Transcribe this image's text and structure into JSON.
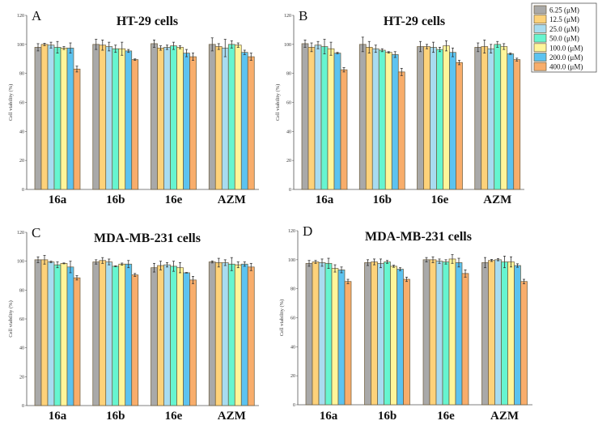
{
  "chart_data": {
    "type": "bar",
    "legend": {
      "placement": "top-right",
      "entries": [
        "6.25 (μM)",
        "12.5 (μM)",
        "25.0 (μM)",
        "50.0 (μM)",
        "100.0 (μM)",
        "200.0 (μM)",
        "400.0 (μM)"
      ],
      "colors": [
        "#a9a9a9",
        "#fdd27a",
        "#a8dcf0",
        "#66f5d0",
        "#fff59a",
        "#5cc3f0",
        "#f8ad6b"
      ]
    },
    "panels": [
      {
        "label": "A",
        "title": "HT-29 cells",
        "ylabel": "Cell viability (%)",
        "ylim": [
          0,
          120
        ],
        "yticks": [
          "0",
          "20",
          "40",
          "60",
          "80",
          "100",
          "120"
        ],
        "categories": [
          "16a",
          "16b",
          "16e",
          "AZM"
        ],
        "values": [
          [
            98,
            100,
            99.5,
            98,
            97.5,
            97.5,
            83
          ],
          [
            100,
            99.5,
            98.5,
            97,
            97,
            95.5,
            89.5
          ],
          [
            100.5,
            97.5,
            98,
            99,
            98,
            94,
            91.5
          ],
          [
            100,
            98.5,
            97.5,
            100,
            99.5,
            94.5,
            91.5
          ]
        ],
        "errors": [
          [
            2.5,
            0.8,
            2,
            4,
            1,
            3.5,
            2
          ],
          [
            3.5,
            3.5,
            3,
            2.5,
            4.5,
            1,
            0.5
          ],
          [
            2.5,
            1.5,
            1.5,
            2.5,
            1,
            2.5,
            2.5
          ],
          [
            4.5,
            2,
            6,
            2.5,
            1.5,
            1.5,
            2.5
          ]
        ]
      },
      {
        "label": "B",
        "title": "HT-29 cells",
        "ylabel": "Cell viability (%)",
        "ylim": [
          0,
          120
        ],
        "yticks": [
          "0",
          "20",
          "40",
          "60",
          "80",
          "100",
          "120"
        ],
        "categories": [
          "16a",
          "16b",
          "16e",
          "AZM"
        ],
        "values": [
          [
            100.5,
            98,
            99.5,
            98.5,
            97,
            94,
            82.5
          ],
          [
            100,
            98,
            97,
            96,
            94.5,
            93,
            81
          ],
          [
            98.5,
            98.5,
            98,
            96.5,
            99,
            94.5,
            87.5
          ],
          [
            98,
            98.5,
            97,
            100,
            98.5,
            93.5,
            89.5
          ]
        ],
        "errors": [
          [
            2.5,
            3,
            2.5,
            5,
            4.5,
            0.5,
            1.5
          ],
          [
            5,
            4,
            2.5,
            1,
            0.5,
            2,
            2.5
          ],
          [
            3.5,
            1.5,
            3.5,
            1.5,
            3.5,
            3,
            1.5
          ],
          [
            3,
            4.5,
            3,
            2,
            2,
            0.5,
            1
          ]
        ]
      },
      {
        "label": "C",
        "title": "MDA-MB-231 cells",
        "ylabel": "Cell viability (%)",
        "ylim": [
          0,
          120
        ],
        "yticks": [
          "0",
          "20",
          "40",
          "60",
          "80",
          "100",
          "120"
        ],
        "categories": [
          "16a",
          "16b",
          "16e",
          "AZM"
        ],
        "values": [
          [
            101,
            101,
            99.5,
            97.5,
            98.5,
            96,
            88.5
          ],
          [
            99.5,
            100.5,
            99.5,
            96.5,
            98,
            98,
            90.5
          ],
          [
            95.5,
            97,
            97.5,
            96.5,
            95.5,
            92,
            87
          ],
          [
            99.5,
            99,
            99,
            98,
            97.5,
            98,
            96
          ]
        ],
        "errors": [
          [
            2,
            3,
            0.5,
            2,
            0.3,
            4,
            1.5
          ],
          [
            1.5,
            2,
            2,
            0.3,
            0.7,
            2.5,
            1
          ],
          [
            3,
            3,
            1.5,
            3.5,
            3.5,
            0.2,
            2.5
          ],
          [
            0.7,
            3,
            2,
            4.5,
            2,
            1.5,
            2.5
          ]
        ]
      },
      {
        "label": "D",
        "title": "MDA-MB-231 cells",
        "ylabel": "Cell viability (%)",
        "ylim": [
          0,
          120
        ],
        "yticks": [
          "0",
          "20",
          "40",
          "60",
          "80",
          "100",
          "120"
        ],
        "categories": [
          "16a",
          "16b",
          "16e",
          "AZM"
        ],
        "values": [
          [
            97.5,
            98.5,
            98,
            97.5,
            94,
            93,
            85
          ],
          [
            98,
            98.5,
            97.5,
            98.5,
            95.5,
            93.5,
            86.5
          ],
          [
            100,
            100,
            99,
            98.5,
            100.5,
            98,
            90.5
          ],
          [
            98,
            99.5,
            100,
            98.5,
            98.5,
            96,
            85
          ]
        ],
        "errors": [
          [
            2,
            1,
            2.5,
            3.5,
            2.5,
            2,
            1.5
          ],
          [
            2,
            2,
            3,
            1,
            0.7,
            1,
            1.5
          ],
          [
            1.5,
            2,
            1.5,
            1.5,
            3,
            3,
            2.5
          ],
          [
            3.5,
            0.7,
            0.7,
            4,
            3.5,
            1.2,
            1.5
          ]
        ]
      }
    ]
  }
}
